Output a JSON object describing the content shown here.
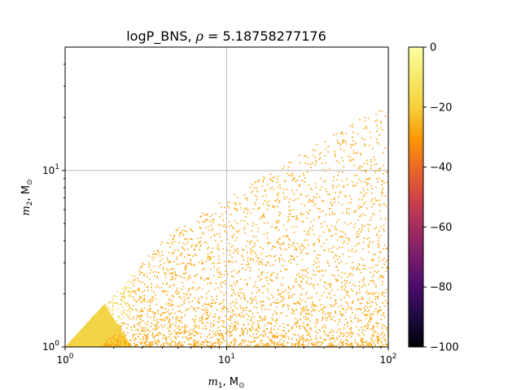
{
  "chart_data": {
    "type": "scatter",
    "title": "logP_BNS, ρ = 5.18758277176",
    "title_parts": {
      "label": "logP_BNS, ",
      "symbol": "ρ",
      "value": " = 5.18758277176"
    },
    "xlabel": {
      "symbol": "m",
      "subscript": "1",
      "unit": ", M",
      "unit_sub": "⊙"
    },
    "ylabel": {
      "symbol": "m",
      "subscript": "2",
      "unit": ", M",
      "unit_sub": "⊙"
    },
    "xscale": "log",
    "yscale": "log",
    "xlim": [
      1,
      100
    ],
    "ylim": [
      1,
      50
    ],
    "x_ticks": [
      {
        "value": 1,
        "base": "10",
        "exp": "0"
      },
      {
        "value": 10,
        "base": "10",
        "exp": "1"
      },
      {
        "value": 100,
        "base": "10",
        "exp": "2"
      }
    ],
    "y_ticks": [
      {
        "value": 1,
        "base": "10",
        "exp": "0"
      },
      {
        "value": 10,
        "base": "10",
        "exp": "1"
      }
    ],
    "grid": true,
    "colorbar": {
      "colormap": "inferno",
      "range": [
        -100,
        0
      ],
      "tick_values": [
        0,
        -20,
        -40,
        -60,
        -80,
        -100
      ],
      "tick_labels": [
        "0",
        "−20",
        "−40",
        "−60",
        "−80",
        "−100"
      ]
    },
    "series": [
      {
        "description_free": true,
        "point_color": "#fca50a",
        "near_equal_mass_color": "#f3d447",
        "m1_range": [
          1,
          100
        ],
        "m2_range": [
          1,
          38
        ],
        "constraint": "m2 <= m1",
        "value_mode": -18
      }
    ]
  }
}
